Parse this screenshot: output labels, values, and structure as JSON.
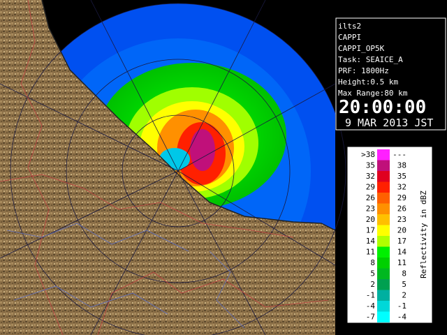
{
  "info": {
    "site": "ilts2",
    "product": "CAPPI",
    "product_name": "CAPPI_OP5K",
    "task": "Task: SEAICE_A",
    "prf": "PRF: 1800Hz",
    "height": "Height:0.5 km",
    "max_range": "Max Range:80 km",
    "time": "20:00:00",
    "date": "9 MAR 2013 JST"
  },
  "legend": {
    "title": "Reflectivity in dBZ",
    "rows": [
      {
        "low": ">38",
        "high": "---",
        "color": "#ff20ff"
      },
      {
        "low": "35",
        "high": "38",
        "color": "#c0107a"
      },
      {
        "low": "32",
        "high": "35",
        "color": "#e00020"
      },
      {
        "low": "29",
        "high": "32",
        "color": "#ff2000"
      },
      {
        "low": "26",
        "high": "29",
        "color": "#ff6000"
      },
      {
        "low": "23",
        "high": "26",
        "color": "#ff9000"
      },
      {
        "low": "20",
        "high": "23",
        "color": "#ffc000"
      },
      {
        "low": "17",
        "high": "20",
        "color": "#ffff00"
      },
      {
        "low": "14",
        "high": "17",
        "color": "#b0ff00"
      },
      {
        "low": "11",
        "high": "14",
        "color": "#00f000"
      },
      {
        "low": "8",
        "high": "11",
        "color": "#00d000"
      },
      {
        "low": "5",
        "high": "8",
        "color": "#00b820"
      },
      {
        "low": "2",
        "high": "5",
        "color": "#00a050"
      },
      {
        "low": "-1",
        "high": "2",
        "color": "#00b0a0"
      },
      {
        "low": "-4",
        "high": "-1",
        "color": "#00d8d8"
      },
      {
        "low": "-7",
        "high": "-4",
        "color": "#00ffff"
      }
    ]
  }
}
